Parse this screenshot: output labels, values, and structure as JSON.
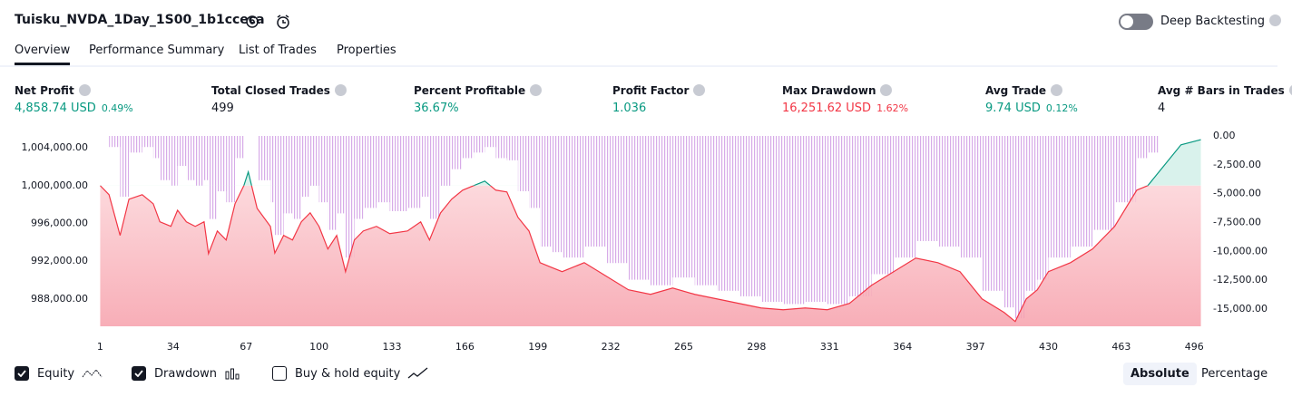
{
  "header": {
    "title": "Tuisku_NVDA_1Day_1S00_1b1cceca",
    "deep_backtesting": "Deep Backtesting",
    "deep_backtesting_on": false
  },
  "tabs": [
    "Overview",
    "Performance Summary",
    "List of Trades",
    "Properties"
  ],
  "active_tab": 0,
  "stats": [
    {
      "label": "Net Profit",
      "value": "4,858.74 USD",
      "percent": "0.49%",
      "tone": "positive"
    },
    {
      "label": "Total Closed Trades",
      "value": "499",
      "tone": "neutral"
    },
    {
      "label": "Percent Profitable",
      "value": "36.67%",
      "tone": "positive"
    },
    {
      "label": "Profit Factor",
      "value": "1.036",
      "tone": "positive"
    },
    {
      "label": "Max Drawdown",
      "value": "16,251.62 USD",
      "percent": "1.62%",
      "tone": "negative"
    },
    {
      "label": "Avg Trade",
      "value": "9.74 USD",
      "percent": "0.12%",
      "tone": "positive"
    },
    {
      "label": "Avg # Bars in Trades",
      "value": "4",
      "tone": "neutral"
    }
  ],
  "chart_data": {
    "type": "line",
    "x": [
      1,
      5,
      10,
      14,
      20,
      25,
      28,
      33,
      36,
      40,
      44,
      48,
      50,
      54,
      58,
      62,
      66,
      68,
      72,
      78,
      80,
      84,
      88,
      92,
      96,
      100,
      104,
      108,
      112,
      116,
      120,
      126,
      132,
      140,
      146,
      150,
      155,
      160,
      165,
      170,
      175,
      180,
      185,
      190,
      195,
      200,
      205,
      210,
      220,
      230,
      240,
      250,
      260,
      270,
      280,
      290,
      300,
      310,
      320,
      330,
      340,
      350,
      360,
      370,
      380,
      390,
      400,
      410,
      415,
      420,
      425,
      430,
      440,
      450,
      460,
      470,
      475,
      480,
      490,
      499
    ],
    "series": [
      {
        "name": "Equity",
        "color": "#f23645",
        "color_above": "#089981",
        "visible": true,
        "values": [
          1000000,
          999040,
          994730,
          998560,
          999040,
          998080,
          996170,
          995690,
          997400,
          996170,
          995690,
          996170,
          992800,
          995200,
          994250,
          998080,
          1000000,
          1001440,
          997600,
          995690,
          992860,
          994730,
          994250,
          996170,
          997120,
          995690,
          993300,
          994730,
          990900,
          994250,
          995200,
          995690,
          994920,
          995200,
          996170,
          994250,
          997120,
          998560,
          999520,
          1000000,
          1000480,
          999520,
          999330,
          996650,
          995200,
          991850,
          991370,
          990900,
          991850,
          990420,
          988980,
          988500,
          989170,
          988500,
          988020,
          987540,
          987060,
          986870,
          987060,
          986870,
          987540,
          989460,
          990900,
          992330,
          991850,
          990900,
          988020,
          986580,
          985630,
          988020,
          988980,
          990900,
          991850,
          993300,
          995690,
          999520,
          1000000,
          1001440,
          1004310,
          1004860
        ]
      },
      {
        "name": "Drawdown",
        "type": "bar",
        "axis": "y2",
        "color": "#ce93d8",
        "visible": true,
        "values": [
          0,
          -960,
          -5270,
          -1440,
          -960,
          -1920,
          -3830,
          -4310,
          -2600,
          -3830,
          -4310,
          -3830,
          -7200,
          -4800,
          -5750,
          -1920,
          0,
          0,
          -3840,
          -5750,
          -8580,
          -6710,
          -7190,
          -5270,
          -4320,
          -5750,
          -8140,
          -6710,
          -10540,
          -7190,
          -6240,
          -5750,
          -6520,
          -6240,
          -5270,
          -7190,
          -4320,
          -2880,
          -1920,
          -1440,
          -960,
          -1920,
          -2110,
          -4790,
          -6240,
          -9590,
          -10070,
          -10540,
          -9590,
          -11020,
          -12460,
          -12940,
          -12270,
          -12940,
          -13420,
          -13900,
          -14380,
          -14570,
          -14380,
          -14570,
          -13900,
          -11980,
          -10540,
          -9110,
          -9590,
          -10540,
          -13420,
          -14860,
          -15810,
          -13420,
          -12460,
          -10540,
          -9590,
          -8140,
          -5750,
          -1920,
          -1440,
          0,
          0,
          0
        ]
      }
    ],
    "xlim": [
      0,
      500
    ],
    "xticks": [
      1,
      34,
      67,
      100,
      133,
      166,
      199,
      232,
      265,
      298,
      331,
      364,
      397,
      430,
      463,
      496
    ],
    "ylim": [
      985120,
      1005250
    ],
    "yticks": [
      {
        "value": 1004000,
        "label": "1,004,000.00"
      },
      {
        "value": 1000000,
        "label": "1,000,000.00"
      },
      {
        "value": 996000,
        "label": "996,000.00"
      },
      {
        "value": 992000,
        "label": "992,000.00"
      },
      {
        "value": 988000,
        "label": "988,000.00"
      }
    ],
    "y2lim": [
      -16500,
      0
    ],
    "y2ticks": [
      {
        "value": 0,
        "label": "0.00"
      },
      {
        "value": -2500,
        "label": "-2,500.00"
      },
      {
        "value": -5000,
        "label": "-5,000.00"
      },
      {
        "value": -7500,
        "label": "-7,500.00"
      },
      {
        "value": -10000,
        "label": "-10,000.00"
      },
      {
        "value": -12500,
        "label": "-12,500.00"
      },
      {
        "value": -15000,
        "label": "-15,000.00"
      }
    ]
  },
  "controls": {
    "buy_hold": {
      "label": "Buy & hold equity",
      "checked": false
    },
    "scale_modes": [
      "Absolute",
      "Percentage"
    ],
    "active_scale": 0
  }
}
